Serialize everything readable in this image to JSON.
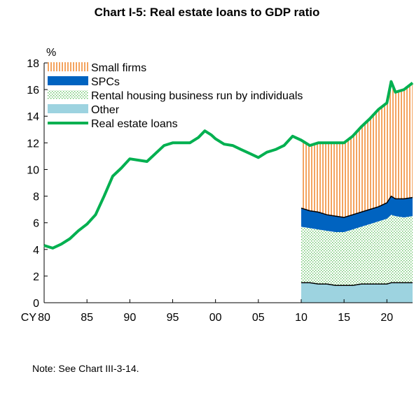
{
  "chart_data": {
    "type": "area",
    "title": "Chart I-5: Real estate loans to GDP ratio",
    "ylabel": "%",
    "xlabel_prefix": "CY",
    "x_tick_labels": [
      "80",
      "85",
      "90",
      "95",
      "00",
      "05",
      "10",
      "15",
      "20"
    ],
    "x_tick_years": [
      1980,
      1985,
      1990,
      1995,
      2000,
      2005,
      2010,
      2015,
      2020
    ],
    "xlim": [
      1980,
      2023
    ],
    "ylim": [
      0,
      18
    ],
    "y_ticks": [
      0,
      2,
      4,
      6,
      8,
      10,
      12,
      14,
      16,
      18
    ],
    "legend_position": "top-left",
    "note": "Note: See Chart III-3-14.",
    "line_series": {
      "name": "Real estate loans",
      "color": "#00b050",
      "x": [
        1980,
        1981,
        1982,
        1983,
        1984,
        1985,
        1986,
        1987,
        1988,
        1989,
        1990,
        1991,
        1992,
        1993,
        1994,
        1995,
        1996,
        1997,
        1998,
        1998.75,
        1999.5,
        2000,
        2001,
        2002,
        2003,
        2004,
        2005,
        2006,
        2007,
        2008,
        2009,
        2010,
        2011,
        2012,
        2013,
        2014,
        2015,
        2016,
        2017,
        2018,
        2019,
        2020,
        2020.5,
        2021,
        2022,
        2023
      ],
      "y": [
        4.3,
        4.1,
        4.4,
        4.8,
        5.4,
        5.9,
        6.6,
        8.0,
        9.5,
        10.1,
        10.8,
        10.7,
        10.6,
        11.2,
        11.8,
        12.0,
        12.0,
        12.0,
        12.4,
        12.9,
        12.6,
        12.3,
        11.9,
        11.8,
        11.5,
        11.2,
        10.9,
        11.3,
        11.5,
        11.8,
        12.5,
        12.2,
        11.8,
        12.0,
        12.0,
        12.0,
        12.0,
        12.5,
        13.2,
        13.8,
        14.5,
        15.0,
        16.6,
        15.8,
        16.0,
        16.5
      ]
    },
    "stacked_series": {
      "x": [
        2010,
        2011,
        2012,
        2013,
        2014,
        2015,
        2016,
        2017,
        2018,
        2019,
        2020,
        2020.5,
        2021,
        2022,
        2023
      ],
      "series": [
        {
          "name": "Other",
          "color": "#9dd3e0",
          "values": [
            1.5,
            1.5,
            1.4,
            1.4,
            1.3,
            1.3,
            1.3,
            1.4,
            1.4,
            1.4,
            1.4,
            1.5,
            1.5,
            1.5,
            1.5
          ]
        },
        {
          "name": "Rental housing business run by individuals",
          "color": "#8fd38f",
          "values": [
            4.2,
            4.1,
            4.1,
            4.0,
            4.0,
            4.0,
            4.2,
            4.3,
            4.5,
            4.7,
            4.9,
            5.1,
            5.0,
            4.9,
            5.0
          ]
        },
        {
          "name": "SPCs",
          "color": "#0063c0",
          "values": [
            1.4,
            1.3,
            1.3,
            1.2,
            1.2,
            1.1,
            1.1,
            1.1,
            1.1,
            1.1,
            1.2,
            1.4,
            1.3,
            1.4,
            1.4
          ]
        },
        {
          "name": "Small firms",
          "color": "#f4a460",
          "values": [
            5.0,
            4.9,
            5.2,
            5.4,
            5.5,
            5.6,
            5.9,
            6.4,
            6.8,
            7.3,
            7.5,
            8.6,
            8.0,
            8.2,
            8.6
          ]
        }
      ]
    }
  }
}
